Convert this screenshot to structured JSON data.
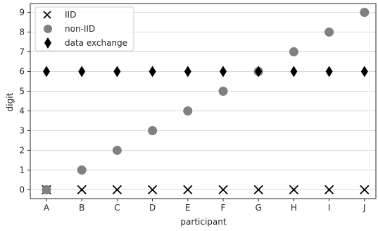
{
  "chart_data": {
    "type": "scatter",
    "xlabel": "participant",
    "ylabel": "digit",
    "categories": [
      "A",
      "B",
      "C",
      "D",
      "E",
      "F",
      "G",
      "H",
      "I",
      "J"
    ],
    "y_ticks": [
      0,
      1,
      2,
      3,
      4,
      5,
      6,
      7,
      8,
      9
    ],
    "ylim": [
      -0.45,
      9.45
    ],
    "grid": "horizontal",
    "legend_position": "top-left",
    "series": [
      {
        "name": "IID",
        "marker": "x",
        "color": "#000000",
        "values": [
          0,
          0,
          0,
          0,
          0,
          0,
          0,
          0,
          0,
          0
        ]
      },
      {
        "name": "non-IID",
        "marker": "circle",
        "color": "#808080",
        "values": [
          0,
          1,
          2,
          3,
          4,
          5,
          6,
          7,
          8,
          9
        ]
      },
      {
        "name": "data exchange",
        "marker": "thin-diamond",
        "color": "#000000",
        "values": [
          6,
          6,
          6,
          6,
          6,
          6,
          6,
          6,
          6,
          6
        ]
      }
    ]
  }
}
